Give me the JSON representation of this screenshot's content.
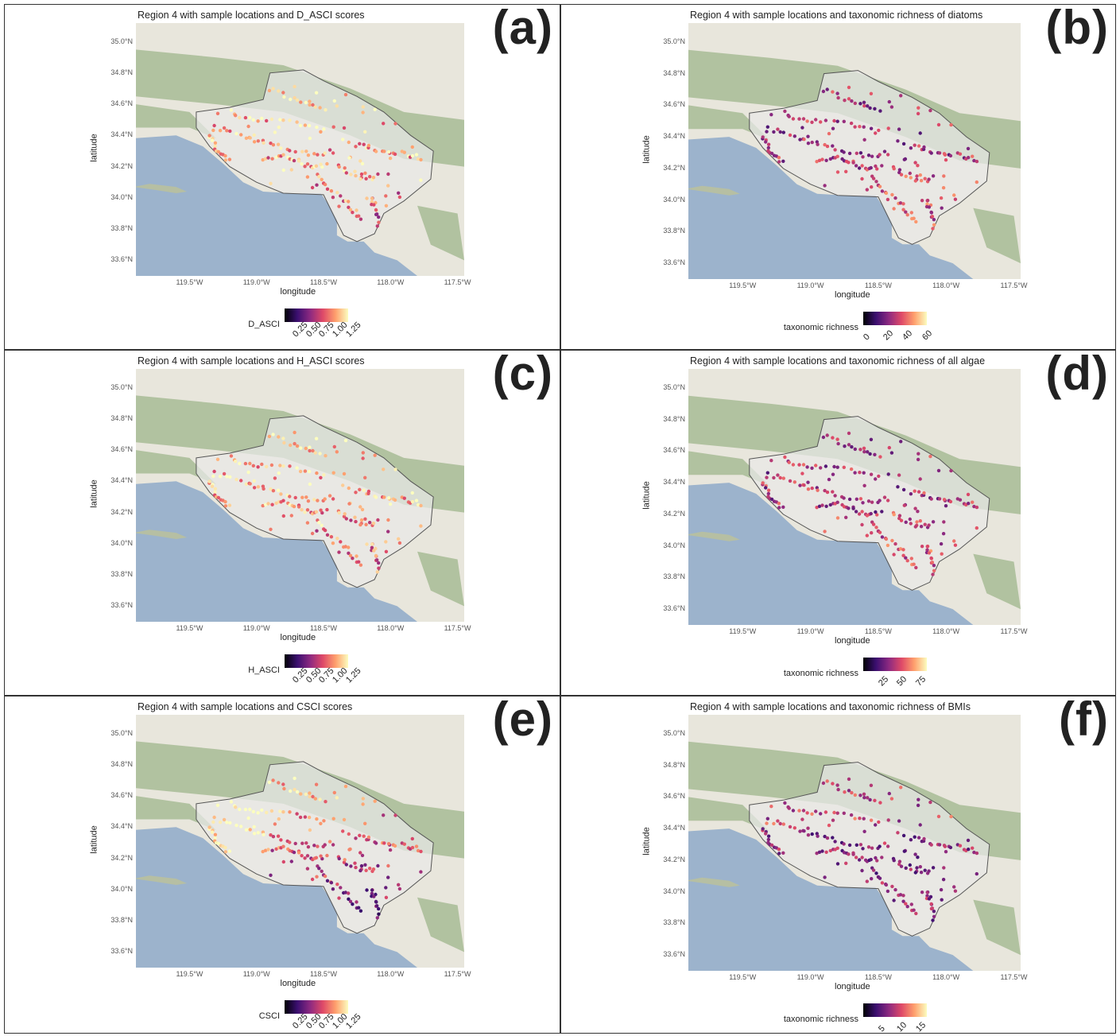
{
  "panels": [
    {
      "id": "a",
      "title": "Region 4 with sample locations and D_ASCI scores",
      "label": "(a)",
      "legend_title": "D_ASCI",
      "legend_ticks": [
        "0.25",
        "0.50",
        "0.75",
        "1.00",
        "1.25"
      ],
      "color_range": [
        0.1,
        1.3
      ],
      "pattern": "asci"
    },
    {
      "id": "b",
      "title": "Region 4 with sample locations and taxonomic richness of diatoms",
      "label": "(b)",
      "legend_title": "taxonomic richness",
      "legend_ticks": [
        "0",
        "20",
        "40",
        "60"
      ],
      "color_range": [
        0,
        65
      ],
      "pattern": "rich"
    },
    {
      "id": "c",
      "title": "Region 4 with sample locations and H_ASCI scores",
      "label": "(c)",
      "legend_title": "H_ASCI",
      "legend_ticks": [
        "0.25",
        "0.50",
        "0.75",
        "1.00",
        "1.25"
      ],
      "color_range": [
        0.1,
        1.3
      ],
      "pattern": "asci"
    },
    {
      "id": "d",
      "title": "Region 4 with sample locations and taxonomic richness of all algae",
      "label": "(d)",
      "legend_title": "taxonomic richness",
      "legend_ticks": [
        "25",
        "50",
        "75"
      ],
      "color_range": [
        5,
        90
      ],
      "pattern": "rich"
    },
    {
      "id": "e",
      "title": "Region 4 with sample locations and CSCI scores",
      "label": "(e)",
      "legend_title": "CSCI",
      "legend_ticks": [
        "0.25",
        "0.50",
        "0.75",
        "1.00",
        "1.25"
      ],
      "color_range": [
        0.1,
        1.3
      ],
      "pattern": "csci"
    },
    {
      "id": "f",
      "title": "Region 4 with sample locations and taxonomic richness of BMIs",
      "label": "(f)",
      "legend_title": "taxonomic richness",
      "legend_ticks": [
        "5",
        "10",
        "15"
      ],
      "color_range": [
        1,
        18
      ],
      "pattern": "bmi"
    }
  ],
  "axis": {
    "xlabel": "longitude",
    "ylabel": "latitude",
    "lat_ticks": [
      "35.0°N",
      "34.8°N",
      "34.6°N",
      "34.4°N",
      "34.2°N",
      "34.0°N",
      "33.8°N",
      "33.6°N"
    ],
    "lon_ticks": [
      "119.5°W",
      "119.0°W",
      "118.5°W",
      "118.0°W",
      "117.5°W"
    ],
    "lat_values": [
      35.0,
      34.8,
      34.6,
      34.4,
      34.2,
      34.0,
      33.8,
      33.6
    ],
    "lon_values": [
      -119.5,
      -119.0,
      -118.5,
      -118.0,
      -117.5
    ],
    "xlim": [
      -119.9,
      -117.45
    ],
    "ylim": [
      33.5,
      35.12
    ]
  },
  "colors": {
    "water": "#9cb3cc",
    "land": "#e8e6dc",
    "mountain": "#9fb58c",
    "region_fill": "#e9e9e7",
    "region_border": "#555555"
  }
}
